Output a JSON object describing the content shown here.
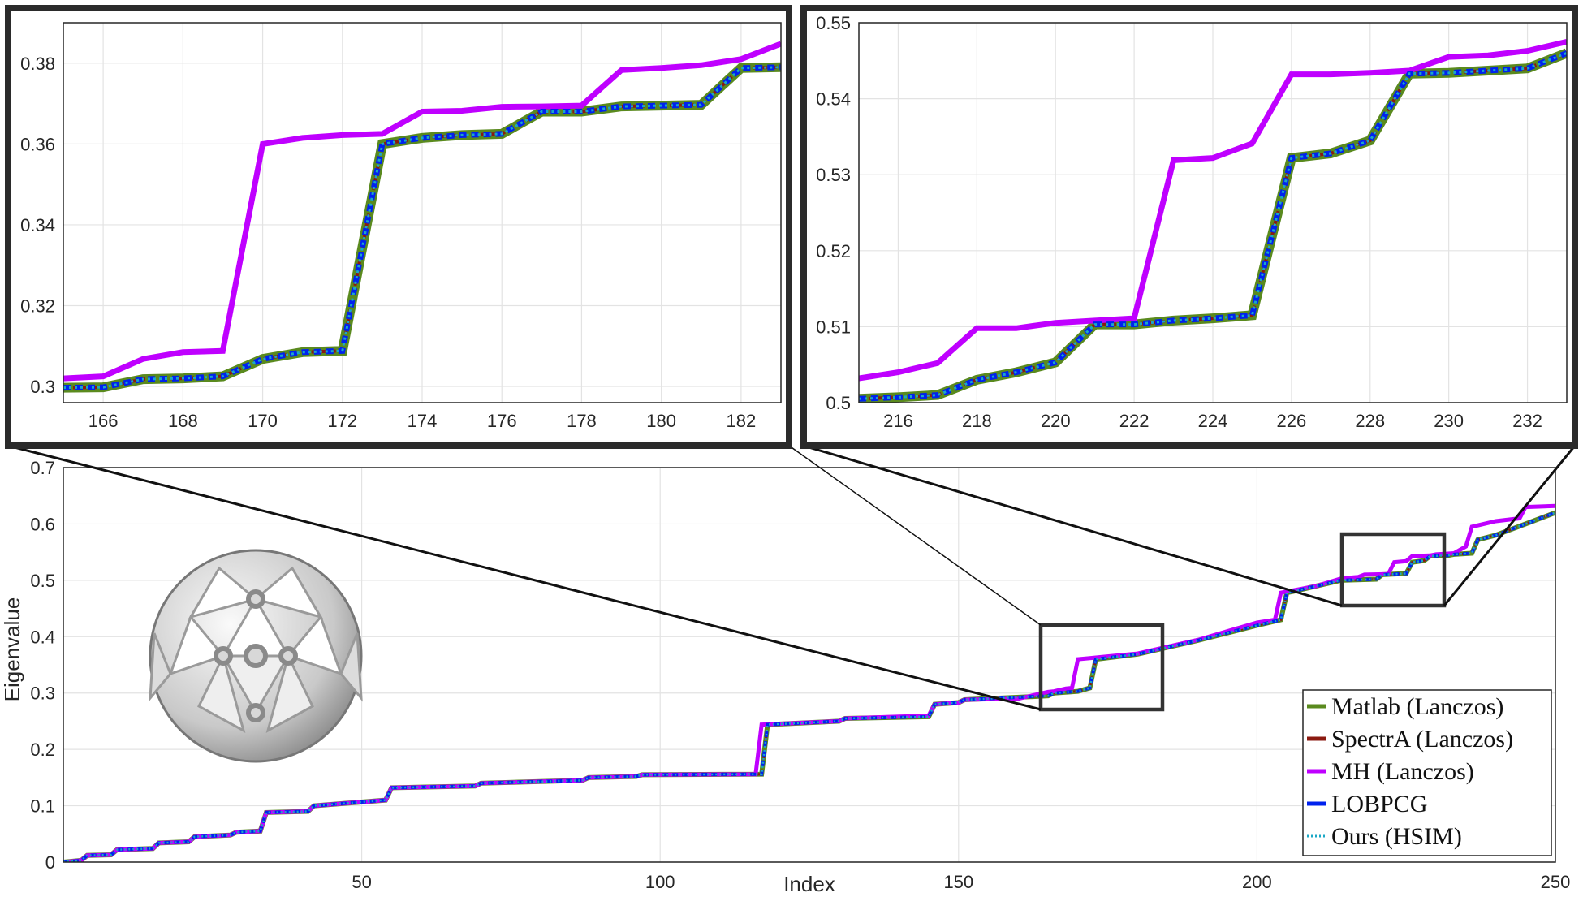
{
  "chart_data": [
    {
      "id": "main",
      "type": "line",
      "title": "",
      "xlabel": "Index",
      "ylabel": "Eigenvalue",
      "xlim": [
        0,
        250
      ],
      "ylim": [
        0,
        0.7
      ],
      "grid": true,
      "legend_position": "bottom-right",
      "xticks": [
        50,
        100,
        150,
        200,
        250
      ],
      "yticks": [
        0,
        0.1,
        0.2,
        0.3,
        0.4,
        0.5,
        0.6,
        0.7
      ],
      "x": [
        0,
        3,
        4,
        8,
        9,
        15,
        16,
        21,
        22,
        28,
        29,
        33,
        34,
        41,
        42,
        54,
        55,
        69,
        70,
        87,
        88,
        96,
        97,
        117,
        118,
        130,
        131,
        145,
        146,
        150,
        151,
        165,
        166,
        170,
        172,
        173,
        180,
        190,
        200,
        204,
        205,
        206,
        210,
        214,
        220,
        221,
        225,
        226,
        228,
        229,
        232,
        233,
        236,
        237,
        240,
        245,
        250
      ],
      "values": [
        0.0,
        0.003,
        0.012,
        0.013,
        0.022,
        0.024,
        0.034,
        0.036,
        0.045,
        0.048,
        0.053,
        0.055,
        0.088,
        0.09,
        0.1,
        0.11,
        0.132,
        0.135,
        0.14,
        0.145,
        0.15,
        0.152,
        0.155,
        0.156,
        0.244,
        0.25,
        0.255,
        0.258,
        0.28,
        0.283,
        0.288,
        0.295,
        0.3,
        0.303,
        0.309,
        0.36,
        0.369,
        0.393,
        0.42,
        0.43,
        0.478,
        0.48,
        0.49,
        0.5,
        0.502,
        0.51,
        0.512,
        0.532,
        0.535,
        0.543,
        0.544,
        0.546,
        0.548,
        0.572,
        0.58,
        0.6,
        0.62
      ],
      "mh_x": [
        0,
        3,
        4,
        8,
        9,
        15,
        16,
        21,
        22,
        28,
        29,
        33,
        34,
        41,
        42,
        54,
        55,
        69,
        70,
        87,
        88,
        96,
        97,
        116,
        117,
        130,
        131,
        145,
        146,
        150,
        151,
        160,
        165,
        166,
        168,
        169,
        170,
        172,
        173,
        180,
        190,
        200,
        203,
        204,
        210,
        214,
        216,
        217,
        218,
        222,
        223,
        225,
        226,
        229,
        230,
        233,
        235,
        236,
        240,
        244,
        245,
        250
      ],
      "mh_values": [
        0.0,
        0.003,
        0.012,
        0.013,
        0.022,
        0.024,
        0.034,
        0.036,
        0.045,
        0.048,
        0.053,
        0.055,
        0.088,
        0.09,
        0.1,
        0.11,
        0.132,
        0.135,
        0.14,
        0.145,
        0.15,
        0.152,
        0.155,
        0.156,
        0.244,
        0.25,
        0.255,
        0.26,
        0.28,
        0.283,
        0.288,
        0.29,
        0.302,
        0.303,
        0.308,
        0.309,
        0.36,
        0.362,
        0.363,
        0.37,
        0.394,
        0.425,
        0.43,
        0.478,
        0.49,
        0.503,
        0.505,
        0.506,
        0.51,
        0.511,
        0.532,
        0.534,
        0.543,
        0.544,
        0.546,
        0.548,
        0.56,
        0.595,
        0.605,
        0.61,
        0.63,
        0.632
      ]
    },
    {
      "id": "inset-left",
      "type": "line",
      "xlim": [
        165,
        183
      ],
      "ylim": [
        0.296,
        0.39
      ],
      "xticks": [
        166,
        168,
        170,
        172,
        174,
        176,
        178,
        180,
        182
      ],
      "yticks": [
        0.3,
        0.32,
        0.34,
        0.36,
        0.38
      ],
      "grid": true,
      "x": [
        165,
        166,
        167,
        168,
        169,
        170,
        171,
        172,
        173,
        174,
        175,
        176,
        177,
        178,
        179,
        180,
        181,
        182,
        183
      ],
      "values": [
        0.2997,
        0.2998,
        0.3018,
        0.302,
        0.3025,
        0.3068,
        0.3085,
        0.3088,
        0.36,
        0.3615,
        0.3622,
        0.3625,
        0.368,
        0.368,
        0.3693,
        0.3695,
        0.3697,
        0.3788,
        0.379
      ],
      "mh_values": [
        0.302,
        0.3025,
        0.3068,
        0.3085,
        0.3088,
        0.36,
        0.3615,
        0.3622,
        0.3625,
        0.368,
        0.3682,
        0.3692,
        0.3693,
        0.3695,
        0.3783,
        0.3788,
        0.3795,
        0.381,
        0.3848
      ]
    },
    {
      "id": "inset-right",
      "type": "line",
      "xlim": [
        215,
        233
      ],
      "ylim": [
        0.5,
        0.55
      ],
      "xticks": [
        216,
        218,
        220,
        222,
        224,
        226,
        228,
        230,
        232
      ],
      "yticks": [
        0.5,
        0.51,
        0.52,
        0.53,
        0.54,
        0.55
      ],
      "grid": true,
      "x": [
        215,
        216,
        217,
        218,
        219,
        220,
        221,
        222,
        223,
        224,
        225,
        226,
        227,
        228,
        229,
        230,
        231,
        232,
        233
      ],
      "values": [
        0.5005,
        0.5007,
        0.501,
        0.503,
        0.504,
        0.5053,
        0.5103,
        0.5103,
        0.5108,
        0.5111,
        0.5115,
        0.5322,
        0.5328,
        0.5345,
        0.5433,
        0.5434,
        0.5437,
        0.544,
        0.546
      ],
      "mh_values": [
        0.5032,
        0.504,
        0.5052,
        0.5098,
        0.5098,
        0.5105,
        0.5108,
        0.5111,
        0.5319,
        0.5322,
        0.5341,
        0.5432,
        0.5432,
        0.5434,
        0.5437,
        0.5455,
        0.5457,
        0.5463,
        0.5475
      ]
    }
  ],
  "legend": [
    {
      "label": "Matlab (Lanczos)",
      "color": "#5a8a1e",
      "style": "solid"
    },
    {
      "label": "SpectrA (Lanczos)",
      "color": "#8b1a10",
      "style": "solid"
    },
    {
      "label": "MH (Lanczos)",
      "color": "#bf00ff",
      "style": "solid"
    },
    {
      "label": "LOBPCG",
      "color": "#0022ee",
      "style": "solid"
    },
    {
      "label": "Ours (HSIM)",
      "color": "#1ba8c6",
      "style": "dotted"
    }
  ],
  "icons": {
    "mesh": "mesh-sphere-render-icon"
  },
  "colors": {
    "frame": "#2b2b2b",
    "grid": "#e3e3e3",
    "axis": "#262626"
  }
}
